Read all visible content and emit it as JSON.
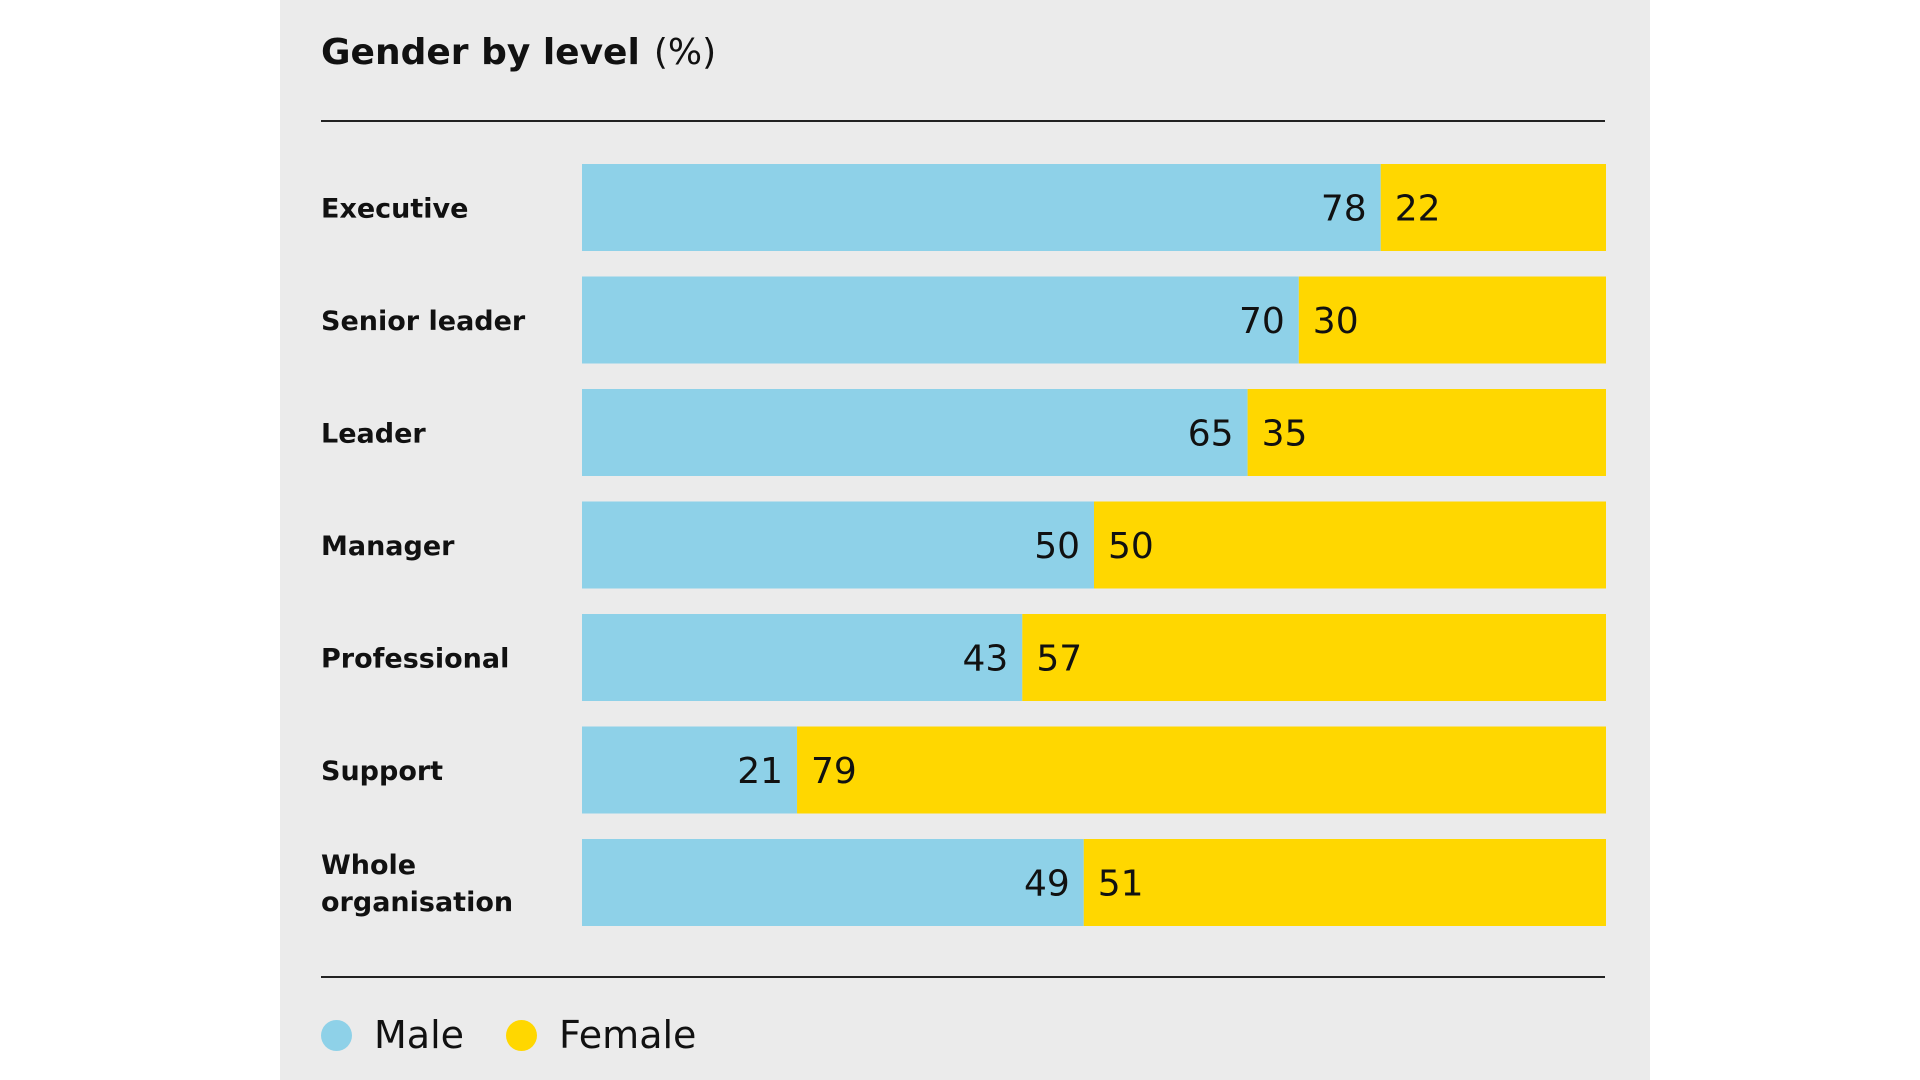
{
  "colors": {
    "male": "#8ed1e8",
    "female": "#ffd700",
    "panel": "#ebebeb",
    "text": "#111111"
  },
  "chart_data": {
    "type": "bar",
    "orientation": "horizontal",
    "stacked": true,
    "title": "Gender by level",
    "unit_label": "(%)",
    "categories": [
      "Executive",
      "Senior leader",
      "Leader",
      "Manager",
      "Professional",
      "Support",
      "Whole organisation"
    ],
    "category_lines": [
      [
        "Executive"
      ],
      [
        "Senior leader"
      ],
      [
        "Leader"
      ],
      [
        "Manager"
      ],
      [
        "Professional"
      ],
      [
        "Support"
      ],
      [
        "Whole",
        "organisation"
      ]
    ],
    "series": [
      {
        "name": "Male",
        "values": [
          78,
          70,
          65,
          50,
          43,
          21,
          49
        ]
      },
      {
        "name": "Female",
        "values": [
          22,
          30,
          35,
          50,
          57,
          79,
          51
        ]
      }
    ],
    "xlim": [
      0,
      100
    ],
    "grid": false,
    "legend_position": "bottom-left"
  }
}
